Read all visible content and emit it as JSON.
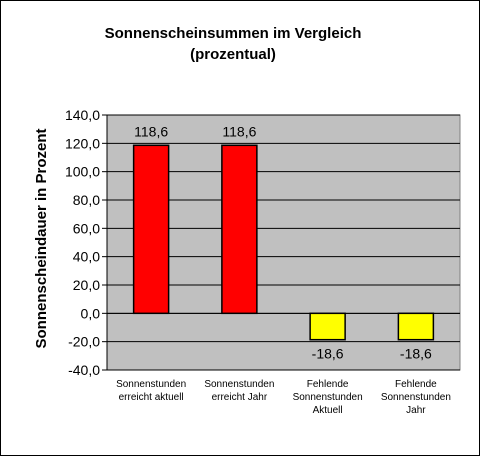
{
  "chart_data": {
    "type": "bar",
    "title": [
      "Sonnenscheinsummen  im  Vergleich",
      "(prozentual)"
    ],
    "ylabel": "Sonnenscheindauer in Prozent",
    "xlabel": "",
    "ylim": [
      -40,
      140
    ],
    "ytick_step": 20,
    "yticks": [
      "140,0",
      "120,0",
      "100,0",
      "80,0",
      "60,0",
      "40,0",
      "20,0",
      "0,0",
      "-20,0",
      "-40,0"
    ],
    "grid": true,
    "legend": "none",
    "categories": [
      [
        "Sonnenstunden",
        "erreicht aktuell"
      ],
      [
        "Sonnenstunden",
        "erreicht Jahr"
      ],
      [
        "Fehlende",
        "Sonnenstunden",
        "Aktuell"
      ],
      [
        "Fehlende",
        "Sonnenstunden",
        "Jahr"
      ]
    ],
    "values": [
      118.6,
      118.6,
      -18.6,
      -18.6
    ],
    "data_labels": [
      "118,6",
      "118,6",
      "-18,6",
      "-18,6"
    ],
    "bar_colors": [
      "#ff0000",
      "#ff0000",
      "#ffff00",
      "#ffff00"
    ],
    "plot_background": "#c0c0c0"
  }
}
